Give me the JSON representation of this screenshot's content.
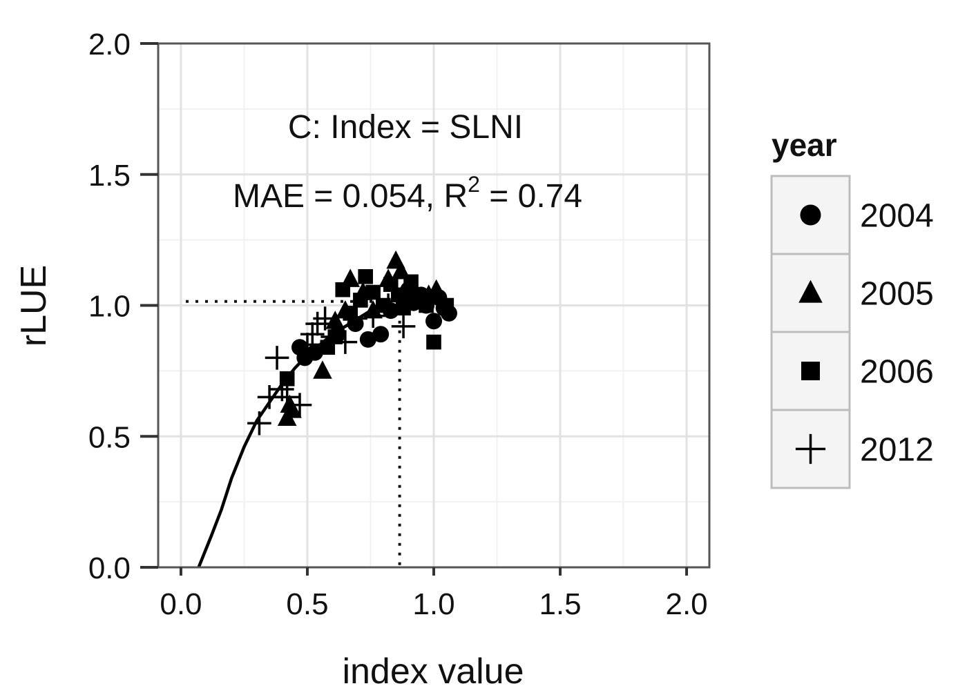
{
  "chart_data": {
    "type": "scatter",
    "xlabel": "index value",
    "ylabel": "rLUE",
    "xlim": [
      -0.09,
      2.09
    ],
    "ylim": [
      0.0,
      2.0
    ],
    "x_ticks": [
      "0.0",
      "0.5",
      "1.0",
      "1.5",
      "2.0"
    ],
    "y_ticks": [
      "0.0",
      "0.5",
      "1.0",
      "1.5",
      "2.0"
    ],
    "grid": true,
    "annotations": {
      "line1": "C: Index = SLNI",
      "line2_prefix": "MAE = 0.054, R",
      "line2_sup": "2",
      "line2_suffix": " = 0.74"
    },
    "legend": {
      "title": "year",
      "placement": "right",
      "entries": [
        {
          "label": "2004",
          "shape": "circle"
        },
        {
          "label": "2005",
          "shape": "triangle"
        },
        {
          "label": "2006",
          "shape": "square"
        },
        {
          "label": "2012",
          "shape": "plus"
        }
      ]
    },
    "fit_curve": {
      "x": [
        0.07,
        0.12,
        0.16,
        0.2,
        0.25,
        0.3,
        0.35,
        0.4,
        0.45,
        0.5,
        0.55,
        0.6,
        0.65,
        0.7,
        0.75,
        0.8,
        0.85,
        0.9,
        0.95,
        1.0
      ],
      "y": [
        0.0,
        0.12,
        0.22,
        0.34,
        0.46,
        0.56,
        0.63,
        0.7,
        0.76,
        0.81,
        0.85,
        0.89,
        0.92,
        0.95,
        0.98,
        0.99,
        1.0,
        1.01,
        1.01,
        1.01
      ]
    },
    "reference_lines": {
      "x": 0.865,
      "y": 1.015
    },
    "series": [
      {
        "name": "2004",
        "shape": "circle",
        "x": [
          0.47,
          0.49,
          0.53,
          0.62,
          0.69,
          0.74,
          0.79,
          0.83,
          0.88,
          0.9,
          0.92,
          0.95,
          0.97,
          1.0,
          1.02,
          1.04,
          1.06
        ],
        "y": [
          0.84,
          0.8,
          0.82,
          0.89,
          0.93,
          0.87,
          0.89,
          0.98,
          1.02,
          1.06,
          1.01,
          1.04,
          1.0,
          0.94,
          1.03,
          0.99,
          0.97
        ]
      },
      {
        "name": "2005",
        "shape": "triangle",
        "x": [
          0.42,
          0.43,
          0.44,
          0.56,
          0.61,
          0.65,
          0.67,
          0.72,
          0.76,
          0.82,
          0.85,
          0.87,
          0.92,
          0.98,
          1.01
        ],
        "y": [
          0.57,
          0.62,
          0.6,
          0.75,
          0.94,
          0.98,
          1.1,
          1.05,
          0.98,
          1.1,
          1.17,
          1.13,
          1.06,
          1.04,
          1.06
        ]
      },
      {
        "name": "2006",
        "shape": "square",
        "x": [
          0.42,
          0.58,
          0.61,
          0.64,
          0.67,
          0.71,
          0.73,
          0.76,
          0.8,
          0.83,
          0.86,
          0.88,
          0.91,
          0.94,
          0.97,
          1.0,
          1.05
        ],
        "y": [
          0.72,
          0.84,
          0.88,
          1.06,
          0.97,
          1.02,
          1.11,
          1.05,
          1.0,
          1.08,
          1.04,
          0.99,
          1.09,
          1.03,
          1.0,
          0.86,
          1.0
        ]
      },
      {
        "name": "2012",
        "shape": "plus",
        "x": [
          0.31,
          0.35,
          0.38,
          0.4,
          0.42,
          0.47,
          0.5,
          0.52,
          0.54,
          0.57,
          0.6,
          0.65,
          0.69,
          0.76,
          0.82,
          0.88
        ],
        "y": [
          0.55,
          0.65,
          0.8,
          0.68,
          0.65,
          0.62,
          0.85,
          0.89,
          0.93,
          0.95,
          0.88,
          0.86,
          0.95,
          0.96,
          1.0,
          0.92
        ]
      }
    ]
  }
}
